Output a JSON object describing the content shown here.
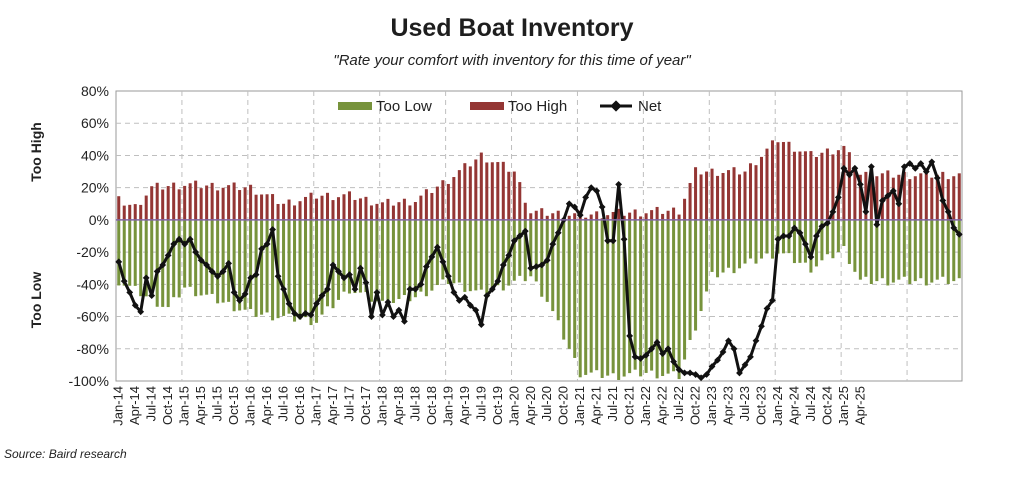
{
  "chart_data": {
    "type": "bar",
    "title": "Used Boat Inventory",
    "subtitle": "\"Rate your comfort with inventory for this time of year\"",
    "source": "Source: Baird research",
    "ylabel_top": "Too High",
    "ylabel_bottom": "Too Low",
    "ylim": [
      -100,
      80
    ],
    "yticks": [
      80,
      60,
      40,
      20,
      0,
      -20,
      -40,
      -60,
      -80,
      -100
    ],
    "ytick_labels": [
      "80%",
      "60%",
      "40%",
      "20%",
      "0%",
      "-20%",
      "-40%",
      "-60%",
      "-80%",
      "-100%"
    ],
    "grid": true,
    "legend_position": "top",
    "colors": {
      "too_low": "#77933c",
      "too_high": "#943634",
      "net": "#111111",
      "grid": "#bfbfbf",
      "zero_line": "#8064a2"
    },
    "x_labels": [
      "Jan-14",
      "Apr-14",
      "Jul-14",
      "Oct-14",
      "Jan-15",
      "Apr-15",
      "Jul-15",
      "Oct-15",
      "Jan-16",
      "Apr-16",
      "Jul-16",
      "Oct-16",
      "Jan-17",
      "Apr-17",
      "Jul-17",
      "Oct-17",
      "Jan-18",
      "Apr-18",
      "Jul-18",
      "Oct-18",
      "Jan-19",
      "Apr-19",
      "Jul-19",
      "Oct-19",
      "Jan-20",
      "Apr-20",
      "Jul-20",
      "Oct-20",
      "Jan-21",
      "Apr-21",
      "Jul-21",
      "Oct-21",
      "Jan-22",
      "Apr-22",
      "Jul-22",
      "Oct-22",
      "Jan-23",
      "Apr-23",
      "Jul-23",
      "Oct-23",
      "Jan-24",
      "Apr-24",
      "Jul-24",
      "Oct-24",
      "Jan-25",
      "Apr-25"
    ],
    "series": [
      {
        "name": "Too Low",
        "anchors": [
          [
            0,
            -38
          ],
          [
            9,
            -55
          ],
          [
            12,
            -42
          ],
          [
            24,
            -58
          ],
          [
            36,
            -63
          ],
          [
            42,
            -43
          ],
          [
            48,
            -52
          ],
          [
            54,
            -48
          ],
          [
            60,
            -38
          ],
          [
            66,
            -46
          ],
          [
            75,
            -35
          ],
          [
            78,
            -50
          ],
          [
            84,
            -95
          ],
          [
            90,
            -97
          ],
          [
            96,
            -95
          ],
          [
            102,
            -97
          ],
          [
            108,
            -35
          ],
          [
            114,
            -28
          ],
          [
            120,
            -20
          ],
          [
            126,
            -30
          ],
          [
            132,
            -18
          ],
          [
            135,
            -38
          ]
        ]
      },
      {
        "name": "Too High",
        "anchors": [
          [
            0,
            12
          ],
          [
            3,
            8
          ],
          [
            6,
            20
          ],
          [
            12,
            22
          ],
          [
            24,
            20
          ],
          [
            30,
            10
          ],
          [
            36,
            15
          ],
          [
            42,
            15
          ],
          [
            48,
            10
          ],
          [
            54,
            12
          ],
          [
            60,
            25
          ],
          [
            66,
            40
          ],
          [
            72,
            30
          ],
          [
            75,
            5
          ],
          [
            84,
            3
          ],
          [
            96,
            5
          ],
          [
            102,
            6
          ],
          [
            105,
            30
          ],
          [
            114,
            30
          ],
          [
            120,
            50
          ],
          [
            126,
            40
          ],
          [
            132,
            45
          ],
          [
            135,
            28
          ]
        ]
      },
      {
        "name": "Net",
        "values": [
          -26,
          -38,
          -45,
          -53,
          -57,
          -36,
          -47,
          -32,
          -28,
          -22,
          -15,
          -12,
          -15,
          -12,
          -20,
          -25,
          -28,
          -32,
          -35,
          -32,
          -27,
          -45,
          -50,
          -46,
          -36,
          -34,
          -18,
          -15,
          -6,
          -35,
          -43,
          -52,
          -58,
          -60,
          -58,
          -59,
          -52,
          -47,
          -43,
          -28,
          -32,
          -36,
          -34,
          -43,
          -30,
          -39,
          -60,
          -45,
          -59,
          -51,
          -60,
          -56,
          -63,
          -43,
          -43,
          -40,
          -29,
          -23,
          -17,
          -26,
          -35,
          -45,
          -50,
          -48,
          -53,
          -56,
          -65,
          -47,
          -43,
          -38,
          -28,
          -22,
          -13,
          -10,
          -7,
          -30,
          -29,
          -28,
          -25,
          -15,
          -8,
          0,
          10,
          8,
          3,
          14,
          20,
          18,
          8,
          -13,
          -13,
          22,
          -12,
          -72,
          -85,
          -86,
          -84,
          -80,
          -76,
          -83,
          -80,
          -88,
          -93,
          -95,
          -95,
          -96,
          -98,
          -96,
          -91,
          -87,
          -82,
          -75,
          -80,
          -95,
          -90,
          -85,
          -75,
          -66,
          -55,
          -50,
          -12,
          -10,
          -10,
          -5,
          -8,
          -15,
          -23,
          -10,
          -4,
          -2,
          5,
          14,
          32,
          28,
          32,
          22,
          5,
          33,
          -3,
          12,
          15,
          18,
          10,
          33,
          35,
          32,
          35,
          30,
          36,
          26,
          12,
          5,
          -5,
          -9
        ]
      }
    ]
  },
  "legend": {
    "too_low": "Too Low",
    "too_high": "Too High",
    "net": "Net"
  }
}
